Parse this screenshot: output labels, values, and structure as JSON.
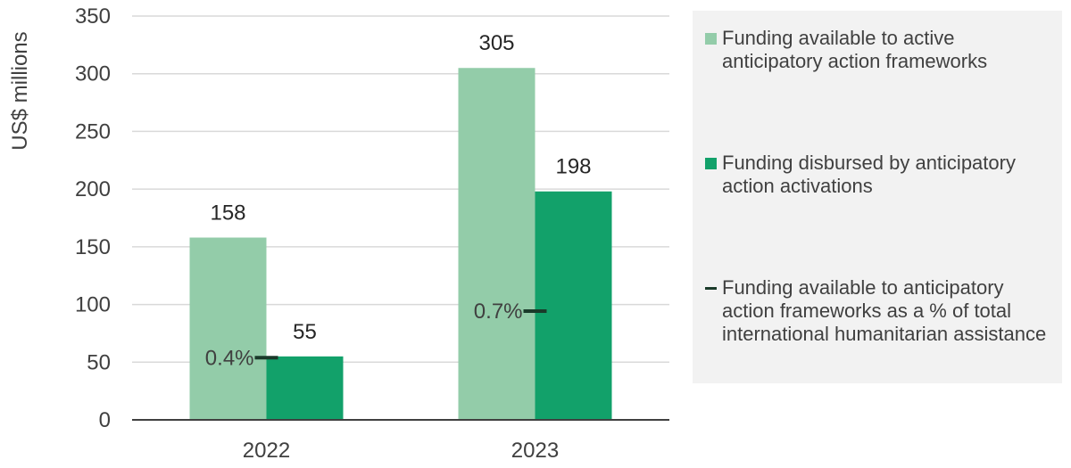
{
  "chart_data": {
    "type": "bar",
    "categories": [
      "2022",
      "2023"
    ],
    "ylabel": "US$ millions",
    "ylim": [
      0,
      350
    ],
    "yticks": [
      0,
      50,
      100,
      150,
      200,
      250,
      300,
      350
    ],
    "grid": true,
    "legend_position": "right",
    "series": [
      {
        "name": "Funding available to active anticipatory action frameworks",
        "values": [
          158,
          305
        ],
        "color": "#93cca9"
      },
      {
        "name": "Funding disbursed by anticipatory action activations",
        "values": [
          55,
          198
        ],
        "color": "#12a16a"
      }
    ],
    "markers": {
      "name": "Funding available to anticipatory action frameworks as a % of total international humanitarian assistance",
      "values": [
        0.4,
        0.7
      ],
      "labels": [
        "0.4%",
        "0.7%"
      ],
      "color": "#1a3a2a"
    }
  }
}
